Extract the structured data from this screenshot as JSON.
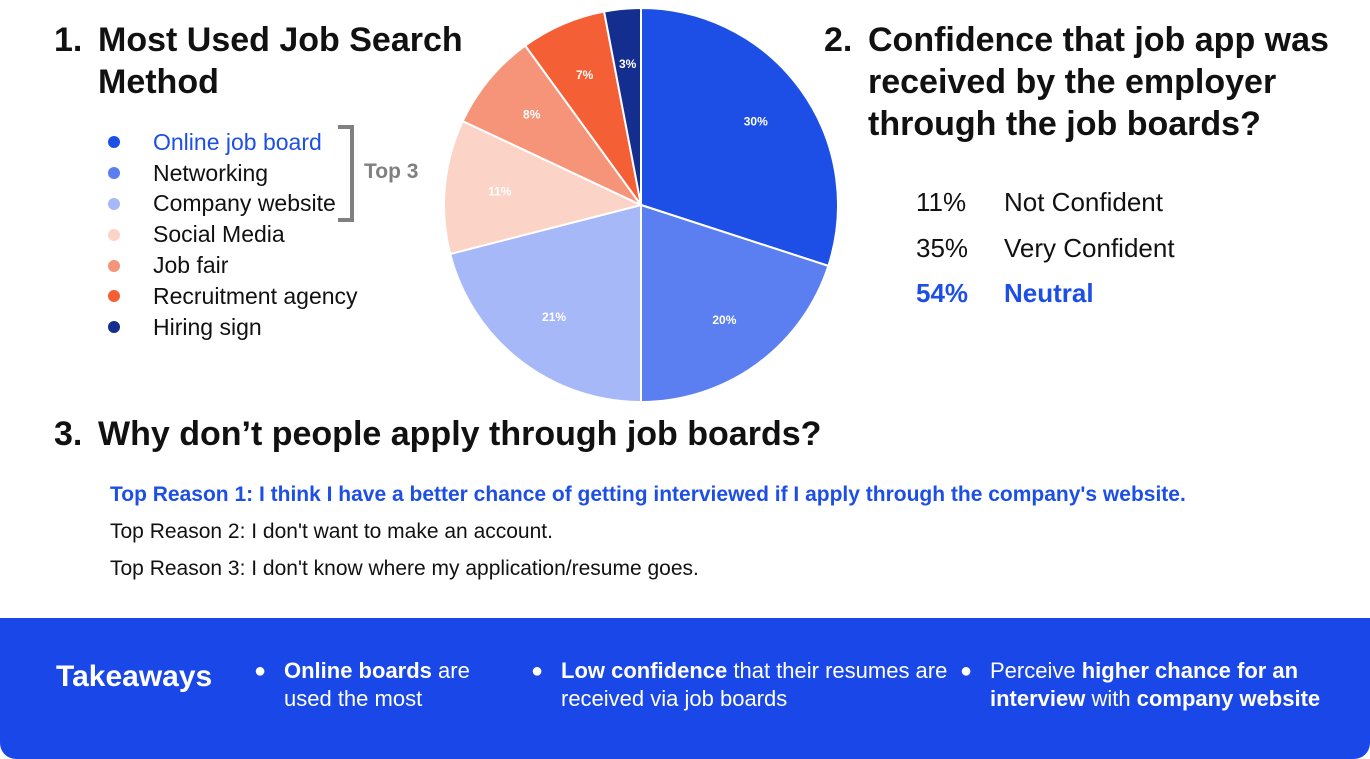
{
  "section1": {
    "number": "1.",
    "title": "Most Used Job Search Method"
  },
  "section2": {
    "number": "2.",
    "title": "Confidence that job app was received by the employer through the job boards?"
  },
  "section3": {
    "number": "3.",
    "title": "Why don’t people apply through job boards?"
  },
  "legend": [
    {
      "label": "Online job board",
      "color": "#1d4fe6",
      "highlight": true
    },
    {
      "label": "Networking",
      "color": "#5b7ef0",
      "highlight": false
    },
    {
      "label": "Company website",
      "color": "#a7b8f8",
      "highlight": false
    },
    {
      "label": "Social Media",
      "color": "#fbd3c7",
      "highlight": false
    },
    {
      "label": "Job fair",
      "color": "#f59479",
      "highlight": false
    },
    {
      "label": "Recruitment agency",
      "color": "#f45f35",
      "highlight": false
    },
    {
      "label": "Hiring sign",
      "color": "#142e8f",
      "highlight": false
    }
  ],
  "top3_label": "Top 3",
  "chart_data": {
    "type": "pie",
    "categories": [
      "Online job board",
      "Networking",
      "Company website",
      "Social Media",
      "Job fair",
      "Recruitment agency",
      "Hiring sign"
    ],
    "values": [
      30,
      20,
      21,
      11,
      8,
      7,
      3
    ],
    "labels": [
      "30%",
      "20%",
      "21%",
      "11%",
      "8%",
      "7%",
      "3%"
    ],
    "colors": [
      "#1d4fe6",
      "#5b7ef0",
      "#a7b8f8",
      "#fbd3c7",
      "#f59479",
      "#f45f35",
      "#142e8f"
    ],
    "label_colors": [
      "#ffffff",
      "#ffffff",
      "#ffffff",
      "#ffffff",
      "#ffffff",
      "#ffffff",
      "#ffffff"
    ]
  },
  "confidence": [
    {
      "pct": "11%",
      "label": "Not Confident",
      "highlight": false
    },
    {
      "pct": "35%",
      "label": "Very Confident",
      "highlight": false
    },
    {
      "pct": "54%",
      "label": "Neutral",
      "highlight": true
    }
  ],
  "reasons": [
    {
      "text": "Top Reason 1: I think I have a better chance of getting interviewed if I apply through the company's website.",
      "highlight": true
    },
    {
      "text": "Top Reason 2: I don't want to make an account.",
      "highlight": false
    },
    {
      "text": "Top Reason 3: I don't know where my application/resume goes.",
      "highlight": false
    }
  ],
  "takeaways": {
    "title": "Takeaways",
    "bullet": "●",
    "item1": {
      "bold1": "Online boards",
      "text1": " are used the most"
    },
    "item2": {
      "bold1": "Low confidence",
      "text1": " that their resumes are received via job boards"
    },
    "item3": {
      "text1": "Perceive ",
      "bold1": "higher chance for an interview",
      "text2": " with ",
      "bold2": "company website"
    }
  }
}
